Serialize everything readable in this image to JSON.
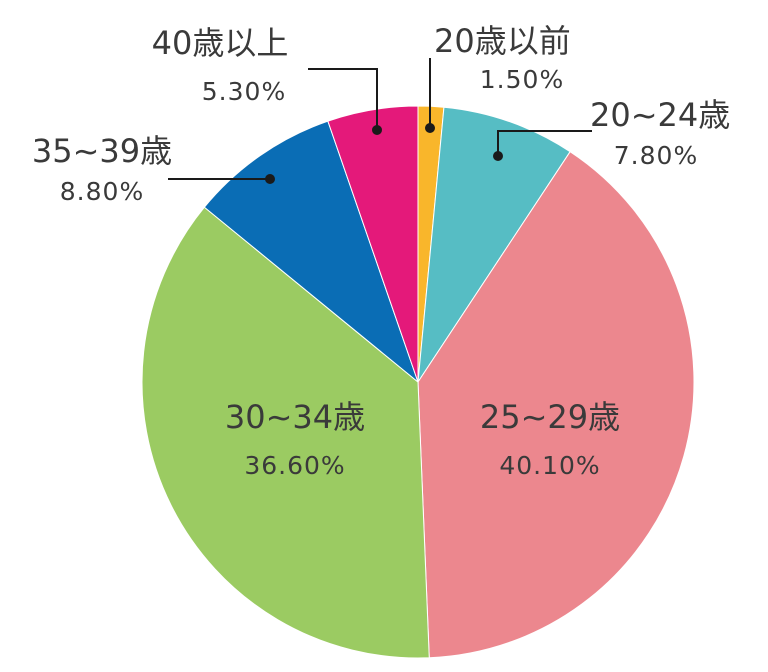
{
  "chart_data": {
    "type": "pie",
    "title": "",
    "start_angle_deg": 0,
    "direction": "clockwise",
    "slices": [
      {
        "label": "20歳以前",
        "value": 1.5,
        "pct_text": "1.50%",
        "color": "#f9b62b",
        "label_placement": "outside-leader"
      },
      {
        "label": "20~24歳",
        "value": 7.8,
        "pct_text": "7.80%",
        "color": "#56bdc4",
        "label_placement": "outside-leader"
      },
      {
        "label": "25~29歳",
        "value": 40.1,
        "pct_text": "40.10%",
        "color": "#ec878e",
        "label_placement": "inside"
      },
      {
        "label": "30~34歳",
        "value": 36.6,
        "pct_text": "36.60%",
        "color": "#9bcb62",
        "label_placement": "inside"
      },
      {
        "label": "35~39歳",
        "value": 8.8,
        "pct_text": "8.80%",
        "color": "#0a6db5",
        "label_placement": "outside-leader"
      },
      {
        "label": "40歳以上",
        "value": 5.3,
        "pct_text": "5.30%",
        "color": "#e4197a",
        "label_placement": "outside-leader"
      }
    ]
  }
}
